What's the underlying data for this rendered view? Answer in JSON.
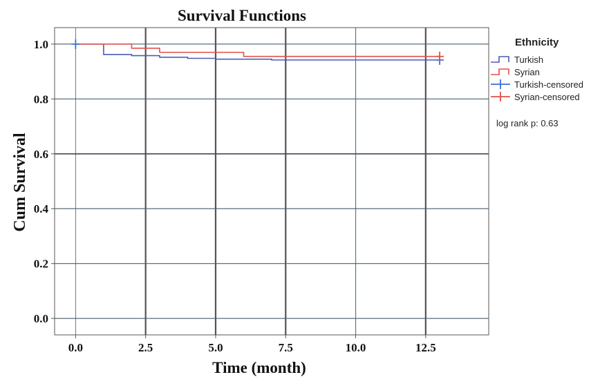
{
  "chart_data": {
    "type": "line",
    "subtype": "kaplan-meier step",
    "title": "Survival Functions",
    "xlabel": "Time (month)",
    "ylabel": "Cum Survival",
    "xlim": [
      -0.75,
      14.75
    ],
    "ylim": [
      -0.06,
      1.06
    ],
    "x_ticks": [
      "0.0",
      "2.5",
      "5.0",
      "7.5",
      "10.0",
      "12.5"
    ],
    "x_tick_values": [
      0,
      2.5,
      5,
      7.5,
      10,
      12.5
    ],
    "y_ticks": [
      "0.0",
      "0.2",
      "0.4",
      "0.6",
      "0.8",
      "1.0"
    ],
    "y_tick_values": [
      0,
      0.2,
      0.4,
      0.6,
      0.8,
      1.0
    ],
    "grid": true,
    "legend_title": "Ethnicity",
    "legend_position": "right",
    "annotation": "log rank p: 0.63",
    "series": [
      {
        "name": "Turkish",
        "color": "#4a5bb5",
        "x": [
          0,
          1,
          2,
          3,
          4,
          5,
          7,
          13
        ],
        "y": [
          1.0,
          0.962,
          0.958,
          0.952,
          0.948,
          0.945,
          0.942,
          0.942
        ]
      },
      {
        "name": "Syrian",
        "color": "#e0504a",
        "x": [
          0,
          2,
          3,
          6,
          13
        ],
        "y": [
          1.0,
          0.985,
          0.97,
          0.955,
          0.955
        ]
      }
    ],
    "censored": [
      {
        "name": "Turkish-censored",
        "color": "#3a6fd0",
        "x": [
          0,
          13
        ],
        "y": [
          1.0,
          0.942
        ]
      },
      {
        "name": "Syrian-censored",
        "color": "#e0504a",
        "x": [
          13
        ],
        "y": [
          0.955
        ]
      }
    ],
    "legend_entries": [
      "Turkish",
      "Syrian",
      "Turkish-censored",
      "Syrian-censored"
    ]
  }
}
